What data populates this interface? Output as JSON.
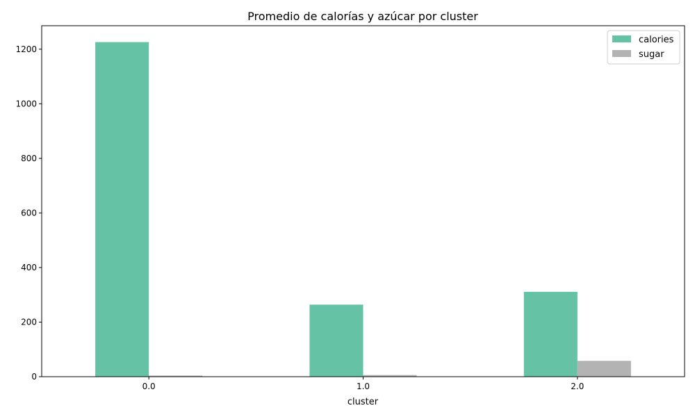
{
  "chart_data": {
    "type": "bar",
    "title": "Promedio de calorías y azúcar por cluster",
    "xlabel": "cluster",
    "ylabel": "",
    "categories": [
      "0.0",
      "1.0",
      "2.0"
    ],
    "series": [
      {
        "name": "calories",
        "values": [
          1226,
          264,
          311
        ],
        "color": "#66c2a5"
      },
      {
        "name": "sugar",
        "values": [
          4,
          6,
          58
        ],
        "color": "#b3b3b3"
      }
    ],
    "ylim": [
      0,
      1286
    ],
    "yticks": [
      0,
      200,
      400,
      600,
      800,
      1000,
      1200
    ],
    "legend_position": "top-right",
    "grid": false
  }
}
